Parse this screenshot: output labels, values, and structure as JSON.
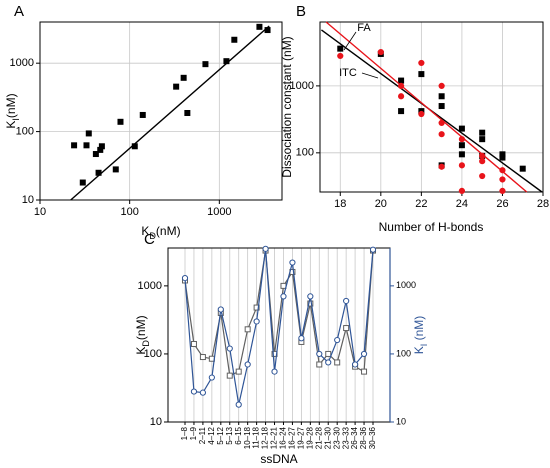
{
  "chart_data": [
    {
      "type": "scatter",
      "panel_label": "A",
      "xlabel": [
        "K",
        "D",
        "(nM)"
      ],
      "ylabel": [
        "K",
        "I",
        "(nM)"
      ],
      "xscale": "log",
      "yscale": "log",
      "xlim": [
        10,
        5000
      ],
      "ylim": [
        10,
        4000
      ],
      "xticks": [
        10,
        100,
        1000
      ],
      "yticks": [
        10,
        100,
        1000
      ],
      "grid": true,
      "series": [
        {
          "color": "#000000",
          "marker": "square",
          "filled": true,
          "x": [
            24,
            30,
            33,
            35,
            42,
            45,
            47,
            49,
            70,
            79,
            114,
            140,
            330,
            400,
            440,
            700,
            1200,
            1470,
            2800,
            3450
          ],
          "values": [
            63,
            18,
            63,
            94,
            47,
            25,
            54,
            61,
            28,
            139,
            61,
            175,
            454,
            611,
            187,
            968,
            1070,
            2200,
            3400,
            3050
          ],
          "fit": {
            "x": [
              22,
              3600
            ],
            "values": [
              10,
              3500
            ]
          }
        }
      ]
    },
    {
      "type": "scatter",
      "panel_label": "B",
      "xlabel": "Number of H-bonds",
      "ylabel": "Dissociation constant (nM)",
      "yscale": "log",
      "xlim": [
        17,
        28
      ],
      "ylim": [
        26,
        9000
      ],
      "xticks": [
        18,
        20,
        22,
        24,
        26,
        28
      ],
      "yticks": [
        100,
        1000
      ],
      "grid": true,
      "series": [
        {
          "name": "ITC",
          "color": "#000000",
          "marker": "square",
          "filled": true,
          "x": [
            18,
            20,
            21,
            21,
            22,
            22,
            23,
            23,
            23,
            24,
            24,
            24,
            25,
            25,
            25,
            26,
            26,
            27
          ],
          "values": [
            3600,
            3000,
            1200,
            420,
            1500,
            420,
            700,
            500,
            65,
            230,
            130,
            95,
            200,
            160,
            90,
            95,
            85,
            58
          ],
          "fit": {
            "x": [
              17.07,
              27.95
            ],
            "values": [
              6850,
              26
            ]
          }
        },
        {
          "name": "FA",
          "color": "#e8141b",
          "marker": "circle",
          "filled": true,
          "x": [
            18,
            20,
            21,
            21,
            22,
            22,
            23,
            23,
            23,
            23,
            24,
            24,
            24,
            25,
            25,
            25,
            26,
            26,
            26
          ],
          "values": [
            2800,
            3200,
            1000,
            700,
            2200,
            380,
            1000,
            280,
            190,
            62,
            160,
            65,
            27,
            90,
            75,
            45,
            55,
            27,
            40
          ],
          "fit": {
            "x": [
              17.3,
              27.2
            ],
            "values": [
              9000,
              26
            ]
          }
        }
      ]
    },
    {
      "type": "line",
      "panel_label": "C",
      "xlabel": "ssDNA",
      "ylabel": [
        "K",
        "D",
        "(nM)"
      ],
      "y2label": [
        "K",
        "I",
        " (nM)"
      ],
      "yscale": "log",
      "ylim": [
        10,
        3600
      ],
      "yticks": [
        10,
        100,
        1000
      ],
      "y2lim": [
        10,
        3600
      ],
      "y2ticks": [
        10,
        100,
        1000
      ],
      "y2color": "#2f5597",
      "category_grid": true,
      "categories": [
        "1–8",
        "1–9",
        "2–11",
        "4–12",
        "5–12",
        "5–13",
        "6–15",
        "10–18",
        "11–18",
        "12–18",
        "12–21",
        "16–24",
        "16–27",
        "19–27",
        "19–28",
        "21–28",
        "21–30",
        "23–30",
        "23–33",
        "26–34",
        "28–36",
        "30–36"
      ],
      "series": [
        {
          "color": "#606060",
          "marker": "square",
          "filled": false,
          "values": [
            1200,
            140,
            90,
            85,
            400,
            48,
            55,
            230,
            480,
            3300,
            100,
            1000,
            1600,
            150,
            550,
            70,
            100,
            75,
            240,
            65,
            55,
            3300
          ]
        },
        {
          "color": "#2f5597",
          "marker": "circle",
          "filled": false,
          "axis": "y2",
          "values": [
            1300,
            28,
            27,
            45,
            450,
            120,
            18,
            70,
            300,
            3500,
            55,
            700,
            2200,
            170,
            700,
            100,
            75,
            160,
            600,
            70,
            100,
            3400
          ]
        }
      ]
    }
  ]
}
